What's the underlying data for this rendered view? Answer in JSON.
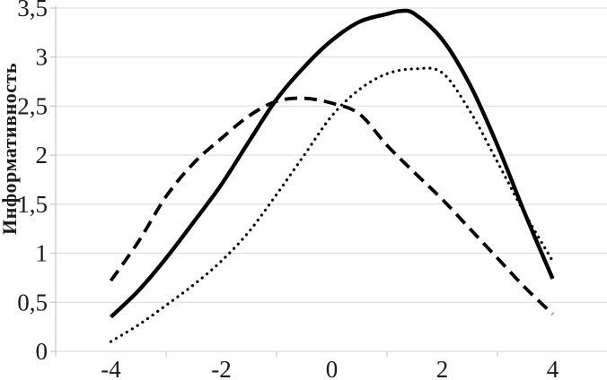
{
  "chart_data": {
    "type": "line",
    "title": "",
    "xlabel": "",
    "ylabel": "Информативность",
    "xlim": [
      -5,
      5
    ],
    "ylim": [
      0,
      3.5
    ],
    "grid": "horizontal",
    "legend_position": "none",
    "colors": {
      "curves": "#000000",
      "gridline": "#d9d9d9",
      "axis": "#bfbfbf",
      "text": "#1a1a1a",
      "background": "#ffffff"
    },
    "x_ticks": [
      {
        "label": "-4",
        "value": -4
      },
      {
        "label": "-2",
        "value": -2
      },
      {
        "label": "0",
        "value": 0
      },
      {
        "label": "2",
        "value": 2
      },
      {
        "label": "4",
        "value": 4
      }
    ],
    "y_ticks": [
      {
        "label": "0",
        "value": 0
      },
      {
        "label": "0,5",
        "value": 0.5
      },
      {
        "label": "1",
        "value": 1
      },
      {
        "label": "1,5",
        "value": 1.5
      },
      {
        "label": "2",
        "value": 2
      },
      {
        "label": "2,5",
        "value": 2.5
      },
      {
        "label": "3",
        "value": 3
      },
      {
        "label": "3,5",
        "value": 3.5
      }
    ],
    "series": [
      {
        "name": "dashed-curve",
        "style": "dashed",
        "peak": {
          "x": -0.5,
          "y": 2.58
        },
        "x": [
          -4,
          -3.5,
          -3,
          -2.5,
          -2,
          -1.5,
          -1,
          -0.5,
          0,
          0.5,
          1,
          1.5,
          2,
          2.5,
          3,
          3.5,
          4
        ],
        "y": [
          0.72,
          1.12,
          1.58,
          1.92,
          2.17,
          2.4,
          2.55,
          2.58,
          2.53,
          2.42,
          2.1,
          1.82,
          1.55,
          1.25,
          0.95,
          0.65,
          0.38
        ]
      },
      {
        "name": "dotted-curve",
        "style": "dotted",
        "peak": {
          "x": 1.5,
          "y": 2.88
        },
        "x": [
          -4,
          -3.5,
          -3,
          -2.5,
          -2,
          -1.5,
          -1,
          -0.5,
          0,
          0.5,
          1,
          1.5,
          2,
          2.5,
          3,
          3.5,
          4
        ],
        "y": [
          0.1,
          0.27,
          0.47,
          0.68,
          0.92,
          1.22,
          1.6,
          2.0,
          2.4,
          2.67,
          2.83,
          2.88,
          2.84,
          2.45,
          1.93,
          1.4,
          0.92
        ]
      },
      {
        "name": "solid-curve",
        "style": "solid",
        "peak": {
          "x": 1.25,
          "y": 3.47
        },
        "x": [
          -4,
          -3.5,
          -3,
          -2.5,
          -2,
          -1.5,
          -1,
          -0.5,
          0,
          0.5,
          1,
          1.25,
          1.5,
          2,
          2.5,
          3,
          3.5,
          4
        ],
        "y": [
          0.35,
          0.62,
          0.95,
          1.32,
          1.7,
          2.14,
          2.57,
          2.9,
          3.17,
          3.36,
          3.44,
          3.47,
          3.44,
          3.18,
          2.72,
          2.1,
          1.4,
          0.74
        ]
      }
    ]
  }
}
